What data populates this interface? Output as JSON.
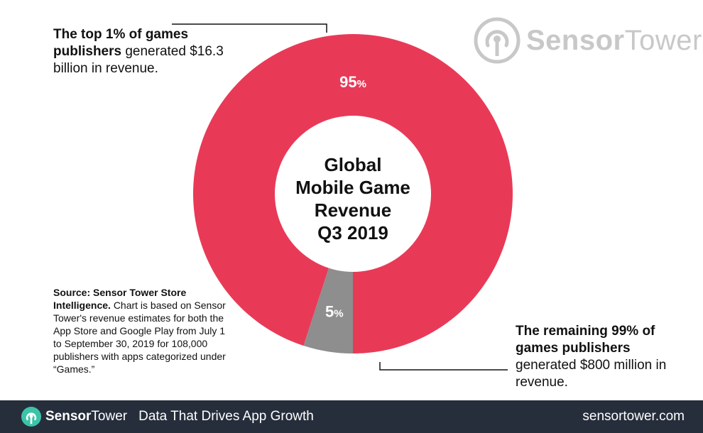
{
  "chart_data": {
    "type": "pie",
    "variant": "donut",
    "title_lines": [
      "Global",
      "Mobile Game",
      "Revenue",
      "Q3 2019"
    ],
    "slices": [
      {
        "label": "95%",
        "value": 95,
        "color": "#e83a57"
      },
      {
        "label": "5%",
        "value": 5,
        "color": "#8e8e8e"
      }
    ]
  },
  "annotations": {
    "top": {
      "bold": "The top 1% of games publishers",
      "rest": "generated $16.3 billion in revenue."
    },
    "bottom": {
      "bold": "The remaining 99% of games publishers",
      "rest": "generated $800 million in revenue."
    },
    "source": {
      "bold": "Source: Sensor Tower Store Intelligence.",
      "rest": "Chart is based on Sensor Tower's revenue estimates for both the App Store and Google Play from July 1 to September 30, 2019 for 108,000 publishers with apps categorized under “Games.”"
    }
  },
  "logo": {
    "brand_bold": "Sensor",
    "brand_rest": "Tower",
    "icon": "sensor-tower-logo-icon"
  },
  "footer": {
    "brand_bold": "Sensor",
    "brand_rest": "Tower",
    "tagline": "Data That Drives App Growth",
    "url": "sensortower.com"
  }
}
